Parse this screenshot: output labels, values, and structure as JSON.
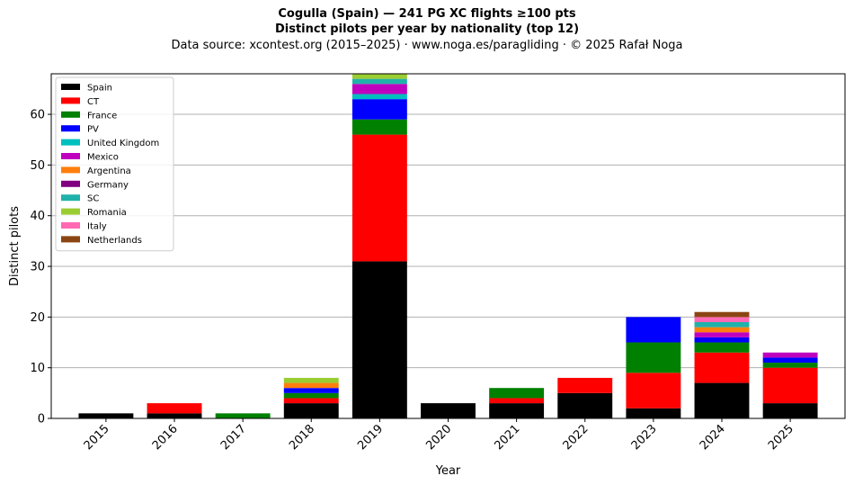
{
  "header": {
    "title_line1": "Cogulla (Spain)  —  241 PG XC flights ≥100 pts",
    "title_line2": "Distinct pilots per year by nationality (top 12)",
    "subtitle": "Data source: xcontest.org (2015–2025)  ·  www.noga.es/paragliding  ·  © 2025 Rafał Noga"
  },
  "chart_data": {
    "type": "bar",
    "stacked": true,
    "title": "Cogulla (Spain)  —  241 PG XC flights ≥100 pts",
    "subtitle": "Distinct pilots per year by nationality (top 12)",
    "xlabel": "Year",
    "ylabel": "Distinct pilots",
    "ylim": [
      0,
      68
    ],
    "yticks": [
      0,
      10,
      20,
      30,
      40,
      50,
      60
    ],
    "grid": "y",
    "legend_position": "top-left",
    "categories": [
      "2015",
      "2016",
      "2017",
      "2018",
      "2019",
      "2020",
      "2021",
      "2022",
      "2023",
      "2024",
      "2025"
    ],
    "series": [
      {
        "name": "Spain",
        "color": "#000000",
        "values": [
          1,
          1,
          0,
          3,
          31,
          3,
          3,
          5,
          2,
          7,
          3
        ]
      },
      {
        "name": "CT",
        "color": "#ff0000",
        "values": [
          0,
          2,
          0,
          1,
          25,
          0,
          1,
          3,
          7,
          6,
          7
        ]
      },
      {
        "name": "France",
        "color": "#008000",
        "values": [
          0,
          0,
          1,
          1,
          3,
          0,
          2,
          0,
          6,
          2,
          1
        ]
      },
      {
        "name": "PV",
        "color": "#0000ff",
        "values": [
          0,
          0,
          0,
          1,
          4,
          0,
          0,
          0,
          5,
          1,
          1
        ]
      },
      {
        "name": "United Kingdom",
        "color": "#00bfbf",
        "values": [
          0,
          0,
          0,
          0,
          1,
          0,
          0,
          0,
          0,
          0,
          0
        ]
      },
      {
        "name": "Mexico",
        "color": "#bf00bf",
        "values": [
          0,
          0,
          0,
          0,
          2,
          0,
          0,
          0,
          0,
          1,
          1
        ]
      },
      {
        "name": "Argentina",
        "color": "#ff7f0e",
        "values": [
          0,
          0,
          0,
          1,
          0,
          0,
          0,
          0,
          0,
          1,
          0
        ]
      },
      {
        "name": "Germany",
        "color": "#800080",
        "values": [
          0,
          0,
          0,
          0,
          0,
          0,
          0,
          0,
          0,
          0,
          0
        ]
      },
      {
        "name": "SC",
        "color": "#20b2aa",
        "values": [
          0,
          0,
          0,
          0,
          1,
          0,
          0,
          0,
          0,
          1,
          0
        ]
      },
      {
        "name": "Romania",
        "color": "#9acd32",
        "values": [
          0,
          0,
          0,
          1,
          1,
          0,
          0,
          0,
          0,
          0,
          0
        ]
      },
      {
        "name": "Italy",
        "color": "#ff69b4",
        "values": [
          0,
          0,
          0,
          0,
          0,
          0,
          0,
          0,
          0,
          1,
          0
        ]
      },
      {
        "name": "Netherlands",
        "color": "#8b4513",
        "values": [
          0,
          0,
          0,
          0,
          0,
          0,
          0,
          0,
          0,
          1,
          0
        ]
      }
    ]
  }
}
